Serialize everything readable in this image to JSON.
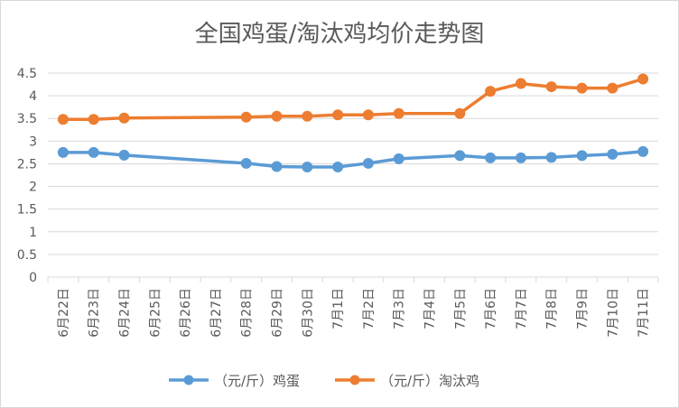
{
  "chart_data": {
    "type": "line",
    "title": "全国鸡蛋/淘汰鸡均价走势图",
    "xlabel": "",
    "ylabel": "",
    "ylim": [
      0,
      4.5
    ],
    "yticks": [
      "0",
      "0.5",
      "1",
      "1.5",
      "2",
      "2.5",
      "3",
      "3.5",
      "4",
      "4.5"
    ],
    "grid": true,
    "legend_position": "bottom",
    "categories": [
      "6月22日",
      "6月23日",
      "6月24日",
      "6月25日",
      "6月26日",
      "6月27日",
      "6月28日",
      "6月29日",
      "6月30日",
      "7月1日",
      "7月2日",
      "7月3日",
      "7月4日",
      "7月5日",
      "7月6日",
      "7月7日",
      "7月8日",
      "7月9日",
      "7月10日",
      "7月11日"
    ],
    "series": [
      {
        "name": "（元/斤）鸡蛋",
        "color": "#5B9BD5",
        "values": [
          2.75,
          2.75,
          2.69,
          null,
          null,
          null,
          2.51,
          2.44,
          2.43,
          2.43,
          2.51,
          2.61,
          null,
          2.68,
          2.63,
          2.63,
          2.64,
          2.68,
          2.71,
          2.77
        ]
      },
      {
        "name": "（元/斤）淘汰鸡",
        "color": "#ED7D31",
        "values": [
          3.48,
          3.48,
          3.51,
          null,
          null,
          null,
          3.53,
          3.55,
          3.55,
          3.58,
          3.58,
          3.61,
          null,
          3.61,
          4.1,
          4.27,
          4.2,
          4.17,
          4.17,
          4.37
        ]
      }
    ]
  }
}
